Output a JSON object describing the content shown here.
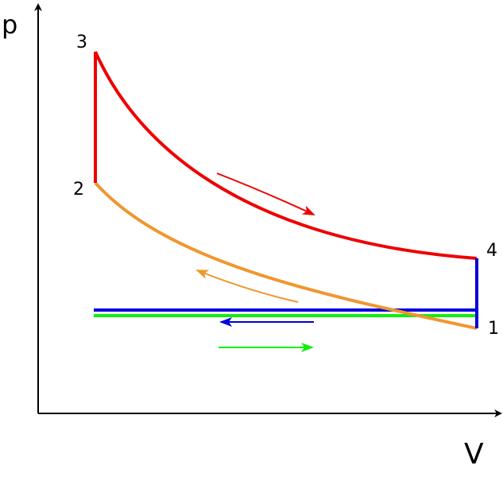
{
  "axes": {
    "y_label": "p",
    "x_label": "V"
  },
  "points": [
    "1",
    "2",
    "3",
    "4"
  ]
}
